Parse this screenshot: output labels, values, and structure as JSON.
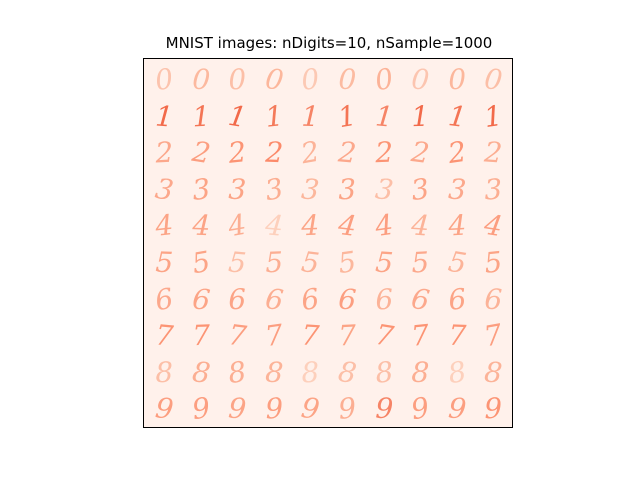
{
  "figure": {
    "title": "MNIST images: nDigits=10, nSample=1000"
  },
  "digit_grid": {
    "rows": [
      {
        "digit": "0",
        "cells": [
          {
            "glyph": "0",
            "color": "#fcc3ad"
          },
          {
            "glyph": "0",
            "color": "#fcb99f"
          },
          {
            "glyph": "0",
            "color": "#fcbfa7"
          },
          {
            "glyph": "0",
            "color": "#fcb79c"
          },
          {
            "glyph": "0",
            "color": "#fcc9b4"
          },
          {
            "glyph": "0",
            "color": "#fcbba1"
          },
          {
            "glyph": "0",
            "color": "#fcb398"
          },
          {
            "glyph": "0",
            "color": "#fcc5b0"
          },
          {
            "glyph": "0",
            "color": "#fcb79c"
          },
          {
            "glyph": "0",
            "color": "#fcbfa7"
          }
        ]
      },
      {
        "digit": "1",
        "cells": [
          {
            "glyph": "1",
            "color": "#f26a4a"
          },
          {
            "glyph": "1",
            "color": "#f47555"
          },
          {
            "glyph": "1",
            "color": "#f26a4a"
          },
          {
            "glyph": "1",
            "color": "#f47a5a"
          },
          {
            "glyph": "1",
            "color": "#f68466"
          },
          {
            "glyph": "1",
            "color": "#f47555"
          },
          {
            "glyph": "1",
            "color": "#f68466"
          },
          {
            "glyph": "1",
            "color": "#f26a4a"
          },
          {
            "glyph": "1",
            "color": "#f47555"
          },
          {
            "glyph": "1",
            "color": "#f26a4a"
          }
        ]
      },
      {
        "digit": "2",
        "cells": [
          {
            "glyph": "2",
            "color": "#fca88c"
          },
          {
            "glyph": "2",
            "color": "#fc9e80"
          },
          {
            "glyph": "2",
            "color": "#fc9474"
          },
          {
            "glyph": "2",
            "color": "#fc8a6a"
          },
          {
            "glyph": "2",
            "color": "#fcb398"
          },
          {
            "glyph": "2",
            "color": "#fca88c"
          },
          {
            "glyph": "2",
            "color": "#fc9474"
          },
          {
            "glyph": "2",
            "color": "#fca88c"
          },
          {
            "glyph": "2",
            "color": "#fc9474"
          },
          {
            "glyph": "2",
            "color": "#fcae92"
          }
        ]
      },
      {
        "digit": "3",
        "cells": [
          {
            "glyph": "3",
            "color": "#fca88c"
          },
          {
            "glyph": "3",
            "color": "#fca486"
          },
          {
            "glyph": "3",
            "color": "#fca486"
          },
          {
            "glyph": "3",
            "color": "#fcae92"
          },
          {
            "glyph": "3",
            "color": "#fcb79c"
          },
          {
            "glyph": "3",
            "color": "#fca486"
          },
          {
            "glyph": "3",
            "color": "#fcbfa7"
          },
          {
            "glyph": "3",
            "color": "#fca486"
          },
          {
            "glyph": "3",
            "color": "#fca88c"
          },
          {
            "glyph": "3",
            "color": "#fcae92"
          }
        ]
      },
      {
        "digit": "4",
        "cells": [
          {
            "glyph": "4",
            "color": "#fca486"
          },
          {
            "glyph": "4",
            "color": "#fca486"
          },
          {
            "glyph": "4",
            "color": "#fcae92"
          },
          {
            "glyph": "4",
            "color": "#fdd0bc"
          },
          {
            "glyph": "4",
            "color": "#fca486"
          },
          {
            "glyph": "4",
            "color": "#fc9e80"
          },
          {
            "glyph": "4",
            "color": "#fc9e80"
          },
          {
            "glyph": "4",
            "color": "#fcb398"
          },
          {
            "glyph": "4",
            "color": "#fca486"
          },
          {
            "glyph": "4",
            "color": "#fc9e80"
          }
        ]
      },
      {
        "digit": "5",
        "cells": [
          {
            "glyph": "5",
            "color": "#fca486"
          },
          {
            "glyph": "5",
            "color": "#fca486"
          },
          {
            "glyph": "5",
            "color": "#fcbfa7"
          },
          {
            "glyph": "5",
            "color": "#fcae92"
          },
          {
            "glyph": "5",
            "color": "#fcb398"
          },
          {
            "glyph": "5",
            "color": "#fcb79c"
          },
          {
            "glyph": "5",
            "color": "#fca486"
          },
          {
            "glyph": "5",
            "color": "#fca88c"
          },
          {
            "glyph": "5",
            "color": "#fcb398"
          },
          {
            "glyph": "5",
            "color": "#fca486"
          }
        ]
      },
      {
        "digit": "6",
        "cells": [
          {
            "glyph": "6",
            "color": "#fca88c"
          },
          {
            "glyph": "6",
            "color": "#fca486"
          },
          {
            "glyph": "6",
            "color": "#fca486"
          },
          {
            "glyph": "6",
            "color": "#fcae92"
          },
          {
            "glyph": "6",
            "color": "#fca486"
          },
          {
            "glyph": "6",
            "color": "#fc9e80"
          },
          {
            "glyph": "6",
            "color": "#fcb398"
          },
          {
            "glyph": "6",
            "color": "#fca88c"
          },
          {
            "glyph": "6",
            "color": "#fca486"
          },
          {
            "glyph": "6",
            "color": "#fcb398"
          }
        ]
      },
      {
        "digit": "7",
        "cells": [
          {
            "glyph": "7",
            "color": "#fc9474"
          },
          {
            "glyph": "7",
            "color": "#fc9474"
          },
          {
            "glyph": "7",
            "color": "#fc9e80"
          },
          {
            "glyph": "7",
            "color": "#fc9e80"
          },
          {
            "glyph": "7",
            "color": "#fc9474"
          },
          {
            "glyph": "7",
            "color": "#fca486"
          },
          {
            "glyph": "7",
            "color": "#fc9474"
          },
          {
            "glyph": "7",
            "color": "#fc9474"
          },
          {
            "glyph": "7",
            "color": "#fc9474"
          },
          {
            "glyph": "7",
            "color": "#fc9e80"
          }
        ]
      },
      {
        "digit": "8",
        "cells": [
          {
            "glyph": "8",
            "color": "#fcbfa7"
          },
          {
            "glyph": "8",
            "color": "#fcae92"
          },
          {
            "glyph": "8",
            "color": "#fcae92"
          },
          {
            "glyph": "8",
            "color": "#fcb398"
          },
          {
            "glyph": "8",
            "color": "#fdd0bc"
          },
          {
            "glyph": "8",
            "color": "#fcbfa7"
          },
          {
            "glyph": "8",
            "color": "#fcbfa7"
          },
          {
            "glyph": "8",
            "color": "#fcae92"
          },
          {
            "glyph": "8",
            "color": "#fdd0bc"
          },
          {
            "glyph": "8",
            "color": "#fcb398"
          }
        ]
      },
      {
        "digit": "9",
        "cells": [
          {
            "glyph": "9",
            "color": "#fc9e80"
          },
          {
            "glyph": "9",
            "color": "#fc9e80"
          },
          {
            "glyph": "9",
            "color": "#fca486"
          },
          {
            "glyph": "9",
            "color": "#fc9e80"
          },
          {
            "glyph": "9",
            "color": "#fca486"
          },
          {
            "glyph": "9",
            "color": "#fcae92"
          },
          {
            "glyph": "9",
            "color": "#f68466"
          },
          {
            "glyph": "9",
            "color": "#fc9e80"
          },
          {
            "glyph": "9",
            "color": "#fc9e80"
          },
          {
            "glyph": "9",
            "color": "#fc9474"
          }
        ]
      }
    ]
  }
}
